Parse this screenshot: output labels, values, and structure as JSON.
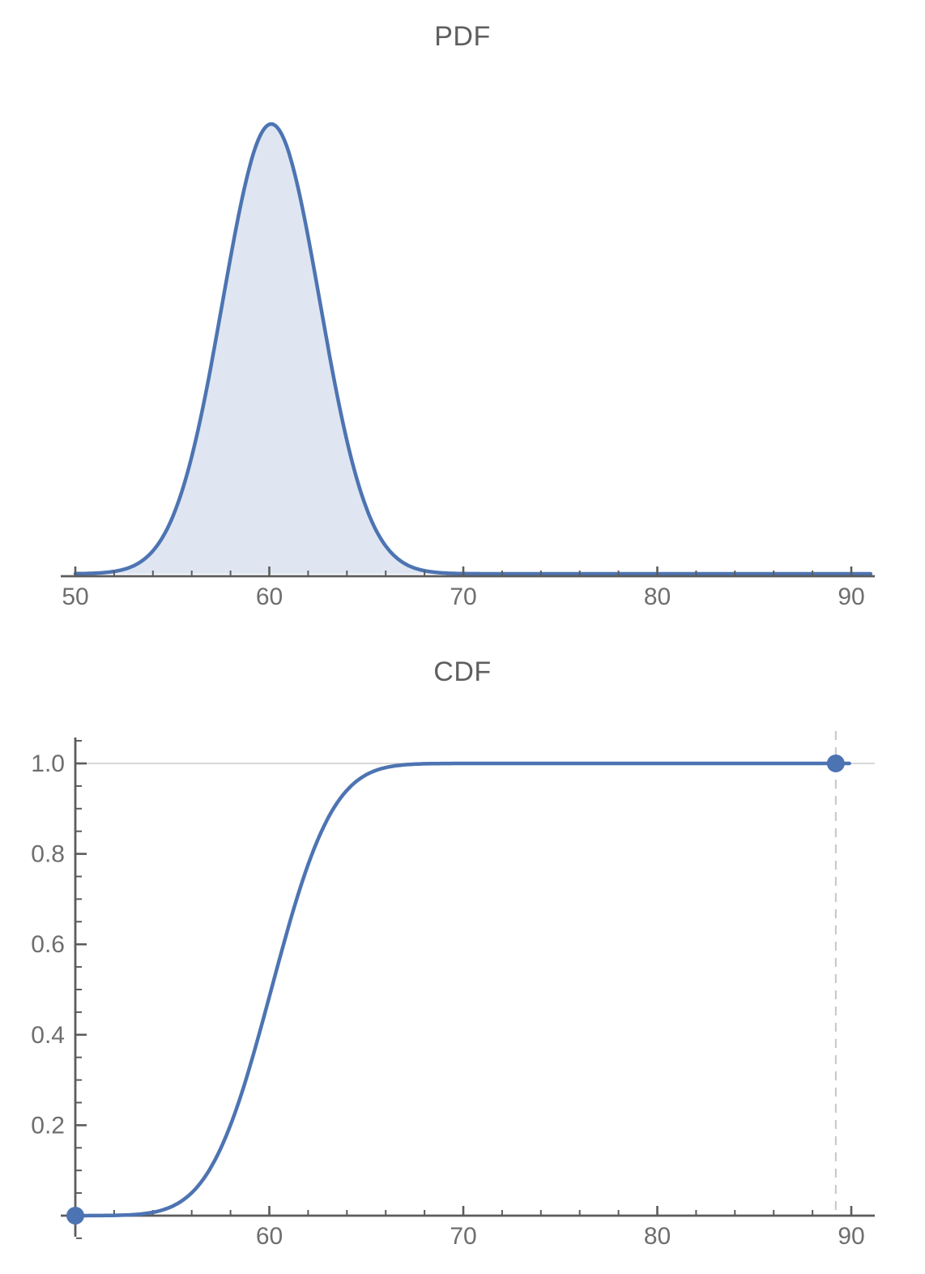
{
  "colors": {
    "curve": "#4d74b2",
    "fill": "#dfe6f2",
    "point": "#4d74b2",
    "axis": "#5c5c5c",
    "tick_label": "#6e6e6e",
    "title": "#5f5f5f",
    "gridline": "#cccccc",
    "dashed_guide": "#c6c6c6",
    "background": "#ffffff"
  },
  "chart_data": [
    {
      "type": "area",
      "title": "PDF",
      "xlabel": "",
      "ylabel": "",
      "x_range": [
        50,
        90
      ],
      "x_tick_labels": [
        "50",
        "60",
        "70",
        "80",
        "90"
      ],
      "x_ticks": [
        50,
        60,
        70,
        80,
        90
      ],
      "x_minor_tick_step": 2,
      "grid": "off",
      "legend": "none",
      "distribution": {
        "family": "normal",
        "mean": 60.1,
        "sigma": 2.5,
        "peak_density": 0.1596
      },
      "x": [
        50,
        52,
        54,
        56,
        58,
        60,
        62,
        64,
        66,
        68,
        70,
        72,
        74,
        76,
        78,
        80,
        82,
        84,
        86,
        88,
        90
      ],
      "y": [
        0.0,
        0.0008,
        0.0081,
        0.0416,
        0.1121,
        0.1595,
        0.1196,
        0.0473,
        0.0098,
        0.0011,
        0.0001,
        0,
        0,
        0,
        0,
        0,
        0,
        0,
        0,
        0,
        0
      ]
    },
    {
      "type": "line",
      "title": "CDF",
      "xlabel": "",
      "ylabel": "",
      "x_range": [
        50,
        90
      ],
      "y_range": [
        0,
        1
      ],
      "x_tick_labels": [
        "60",
        "70",
        "80",
        "90"
      ],
      "x_ticks": [
        60,
        70,
        80,
        90
      ],
      "x_minor_tick_step": 2,
      "y_tick_labels": [
        "0.2",
        "0.4",
        "0.6",
        "0.8",
        "1.0"
      ],
      "y_ticks": [
        0.2,
        0.4,
        0.6,
        0.8,
        1.0
      ],
      "y_minor_tick_step": 0.05,
      "gridline_y": 1.0,
      "dashed_guide_x": 89.2,
      "endpoints": [
        {
          "x": 50,
          "y": 0
        },
        {
          "x": 89.2,
          "y": 1.0
        }
      ],
      "grid": "top-only",
      "legend": "none",
      "distribution": {
        "family": "normal",
        "mean": 60.1,
        "sigma": 2.5
      },
      "x": [
        50,
        52,
        54,
        56,
        58,
        60,
        62,
        64,
        66,
        68,
        70,
        72,
        74,
        76,
        78,
        80,
        82,
        84,
        86,
        88,
        90
      ],
      "y": [
        0.0,
        0.0006,
        0.0073,
        0.0505,
        0.2005,
        0.484,
        0.7764,
        0.9406,
        0.9909,
        0.9992,
        1.0,
        1,
        1,
        1,
        1,
        1,
        1,
        1,
        1,
        1,
        1
      ]
    }
  ]
}
